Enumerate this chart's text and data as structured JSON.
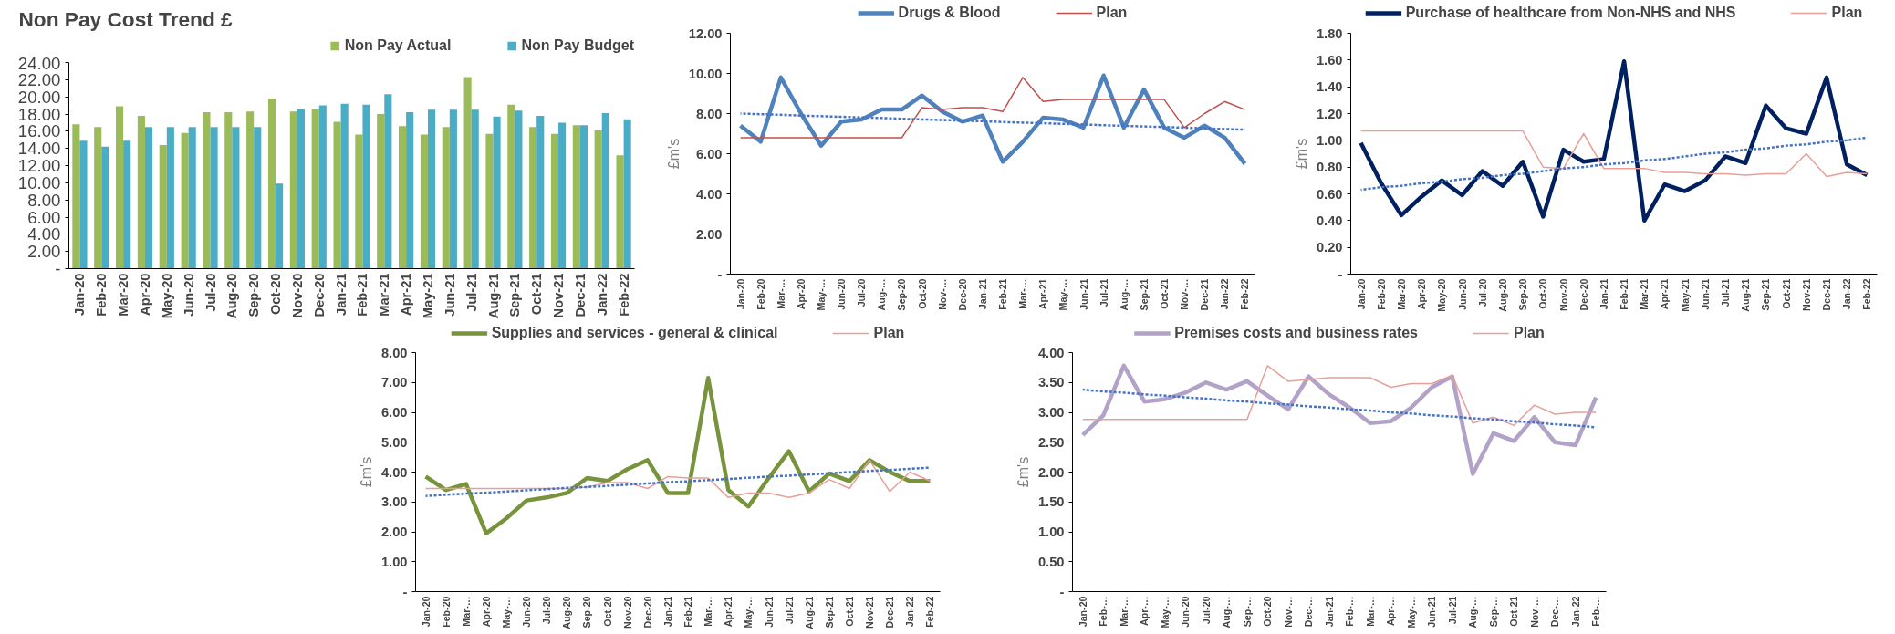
{
  "chart_data": [
    {
      "type": "bar",
      "title": "Non Pay Cost Trend £",
      "legend": "top right",
      "grid": false,
      "categories": [
        "Jan-20",
        "Feb-20",
        "Mar-20",
        "Apr-20",
        "May-20",
        "Jun-20",
        "Jul-20",
        "Aug-20",
        "Sep-20",
        "Oct-20",
        "Nov-20",
        "Dec-20",
        "Jan-21",
        "Feb-21",
        "Mar-21",
        "Apr-21",
        "May-21",
        "Jun-21",
        "Jul-21",
        "Aug-21",
        "Sep-21",
        "Oct-21",
        "Nov-21",
        "Dec-21",
        "Jan-22",
        "Feb-22"
      ],
      "ylim": [
        0,
        24
      ],
      "yticks": [
        {
          "value": 0,
          "label": "-"
        },
        {
          "value": 2,
          "label": "2.00"
        },
        {
          "value": 4,
          "label": "4.00"
        },
        {
          "value": 6,
          "label": "6.00"
        },
        {
          "value": 8,
          "label": "8.00"
        },
        {
          "value": 10,
          "label": "10.00"
        },
        {
          "value": 12,
          "label": "12.00"
        },
        {
          "value": 14,
          "label": "14.00"
        },
        {
          "value": 16,
          "label": "16.00"
        },
        {
          "value": 18,
          "label": "18.00"
        },
        {
          "value": 20,
          "label": "20.00"
        },
        {
          "value": 22,
          "label": "22.00"
        },
        {
          "value": 24,
          "label": "24.00"
        }
      ],
      "series": [
        {
          "name": "Non Pay Actual",
          "color": "#9bbb59",
          "values": [
            16.8,
            16.5,
            18.9,
            17.8,
            14.4,
            15.8,
            18.2,
            18.2,
            18.3,
            19.8,
            18.3,
            18.6,
            17.1,
            15.6,
            18.0,
            16.6,
            15.6,
            16.5,
            22.3,
            15.7,
            19.1,
            16.5,
            15.7,
            16.7,
            16.1,
            13.2
          ]
        },
        {
          "name": "Non Pay Budget",
          "color": "#4bacc6",
          "values": [
            14.9,
            14.2,
            14.9,
            16.5,
            16.5,
            16.5,
            16.5,
            16.5,
            16.5,
            9.9,
            18.6,
            19.0,
            19.2,
            19.1,
            20.3,
            18.2,
            18.5,
            18.5,
            18.5,
            17.7,
            18.4,
            17.8,
            17.0,
            16.7,
            18.1,
            17.4
          ]
        }
      ]
    },
    {
      "type": "line",
      "ylabel": "£m's",
      "legend": "top",
      "grid": false,
      "categories": [
        "Jan-20",
        "Feb-20",
        "Mar-…",
        "Apr-20",
        "May-…",
        "Jun-20",
        "Jul-20",
        "Aug-…",
        "Sep-20",
        "Oct-20",
        "Nov-…",
        "Dec-20",
        "Jan-21",
        "Feb-21",
        "Mar-…",
        "Apr-21",
        "May-…",
        "Jun-21",
        "Jul-21",
        "Aug-…",
        "Sep-21",
        "Oct-21",
        "Nov-…",
        "Dec-21",
        "Jan-22",
        "Feb-22"
      ],
      "ylim": [
        0,
        12
      ],
      "yticks": [
        {
          "value": 0,
          "label": "-"
        },
        {
          "value": 2,
          "label": "2.00"
        },
        {
          "value": 4,
          "label": "4.00"
        },
        {
          "value": 6,
          "label": "6.00"
        },
        {
          "value": 8,
          "label": "8.00"
        },
        {
          "value": 10,
          "label": "10.00"
        },
        {
          "value": 12,
          "label": "12.00"
        }
      ],
      "series": [
        {
          "name": "Drugs & Blood",
          "color": "#4f81bd",
          "values": [
            7.4,
            6.6,
            9.8,
            8.0,
            6.4,
            7.6,
            7.7,
            8.2,
            8.2,
            8.9,
            8.1,
            7.6,
            7.9,
            5.6,
            6.6,
            7.8,
            7.7,
            7.3,
            9.9,
            7.3,
            9.2,
            7.3,
            6.8,
            7.4,
            6.8,
            5.5
          ]
        },
        {
          "name": "Plan",
          "color": "#c0504d",
          "values": [
            6.8,
            6.8,
            6.8,
            6.8,
            6.8,
            6.8,
            6.8,
            6.8,
            6.8,
            8.3,
            8.2,
            8.3,
            8.3,
            8.1,
            9.8,
            8.6,
            8.7,
            8.7,
            8.7,
            8.7,
            8.7,
            8.7,
            7.3,
            8.0,
            8.6,
            8.2
          ]
        },
        {
          "color": "#4472c4",
          "line_style": "dotted",
          "values": [
            8.0,
            7.97,
            7.94,
            7.9,
            7.87,
            7.84,
            7.81,
            7.78,
            7.74,
            7.71,
            7.68,
            7.65,
            7.62,
            7.58,
            7.55,
            7.52,
            7.49,
            7.46,
            7.42,
            7.39,
            7.36,
            7.33,
            7.3,
            7.26,
            7.23,
            7.2
          ]
        }
      ]
    },
    {
      "type": "line",
      "ylabel": "£m's",
      "legend": "top",
      "grid": false,
      "categories": [
        "Jan-20",
        "Feb-20",
        "Mar-20",
        "Apr-20",
        "May-20",
        "Jun-20",
        "Jul-20",
        "Aug-20",
        "Sep-20",
        "Oct-20",
        "Nov-20",
        "Dec-20",
        "Jan-21",
        "Feb-21",
        "Mar-21",
        "Apr-21",
        "May-21",
        "Jun-21",
        "Jul-21",
        "Aug-21",
        "Sep-21",
        "Oct-21",
        "Nov-21",
        "Dec-21",
        "Jan-22",
        "Feb-22"
      ],
      "ylim": [
        0,
        1.8
      ],
      "yticks": [
        {
          "value": 0,
          "label": "-"
        },
        {
          "value": 0.2,
          "label": "0.20"
        },
        {
          "value": 0.4,
          "label": "0.40"
        },
        {
          "value": 0.6,
          "label": "0.60"
        },
        {
          "value": 0.8,
          "label": "0.80"
        },
        {
          "value": 1.0,
          "label": "1.00"
        },
        {
          "value": 1.2,
          "label": "1.20"
        },
        {
          "value": 1.4,
          "label": "1.40"
        },
        {
          "value": 1.6,
          "label": "1.60"
        },
        {
          "value": 1.8,
          "label": "1.80"
        }
      ],
      "series": [
        {
          "name": "Purchase of healthcare from Non-NHS and NHS",
          "color": "#002060",
          "values": [
            0.98,
            0.68,
            0.44,
            0.58,
            0.7,
            0.59,
            0.77,
            0.66,
            0.84,
            0.43,
            0.93,
            0.84,
            0.86,
            1.59,
            0.4,
            0.67,
            0.62,
            0.7,
            0.88,
            0.83,
            1.26,
            1.09,
            1.05,
            1.47,
            0.82,
            0.74
          ]
        },
        {
          "name": "Plan",
          "color": "#e6a09a",
          "values": [
            1.07,
            1.07,
            1.07,
            1.07,
            1.07,
            1.07,
            1.07,
            1.07,
            1.07,
            0.8,
            0.79,
            1.05,
            0.79,
            0.79,
            0.79,
            0.76,
            0.76,
            0.75,
            0.75,
            0.74,
            0.75,
            0.75,
            0.9,
            0.73,
            0.76,
            0.75
          ]
        },
        {
          "color": "#4472c4",
          "line_style": "dotted",
          "values": [
            0.63,
            0.65,
            0.66,
            0.68,
            0.69,
            0.71,
            0.72,
            0.74,
            0.75,
            0.77,
            0.79,
            0.8,
            0.82,
            0.83,
            0.85,
            0.86,
            0.88,
            0.9,
            0.91,
            0.93,
            0.94,
            0.96,
            0.97,
            0.99,
            1.0,
            1.02
          ]
        }
      ]
    },
    {
      "type": "line",
      "ylabel": "£m's",
      "legend": "top",
      "grid": false,
      "categories": [
        "Jan-20",
        "Feb-20",
        "Mar-…",
        "Apr-20",
        "May-…",
        "Jun-20",
        "Jul-20",
        "Aug-20",
        "Sep-20",
        "Oct-20",
        "Nov-20",
        "Dec-20",
        "Jan-21",
        "Feb-21",
        "Mar-…",
        "Apr-21",
        "May-…",
        "Jun-21",
        "Jul-21",
        "Aug-21",
        "Sep-21",
        "Oct-21",
        "Nov-21",
        "Dec-21",
        "Jan-22",
        "Feb-22"
      ],
      "ylim": [
        0,
        8
      ],
      "yticks": [
        {
          "value": 0,
          "label": "-"
        },
        {
          "value": 1,
          "label": "1.00"
        },
        {
          "value": 2,
          "label": "2.00"
        },
        {
          "value": 3,
          "label": "3.00"
        },
        {
          "value": 4,
          "label": "4.00"
        },
        {
          "value": 5,
          "label": "5.00"
        },
        {
          "value": 6,
          "label": "6.00"
        },
        {
          "value": 7,
          "label": "7.00"
        },
        {
          "value": 8,
          "label": "8.00"
        }
      ],
      "series": [
        {
          "name": "Supplies and services - general & clinical",
          "color": "#77933c",
          "values": [
            3.85,
            3.4,
            3.6,
            1.95,
            2.45,
            3.05,
            3.15,
            3.3,
            3.8,
            3.7,
            4.1,
            4.4,
            3.3,
            3.3,
            7.15,
            3.4,
            2.85,
            3.8,
            4.7,
            3.35,
            3.95,
            3.7,
            4.4,
            4.0,
            3.7,
            3.7
          ]
        },
        {
          "name": "Plan",
          "color": "#e6a09a",
          "values": [
            3.45,
            3.45,
            3.45,
            3.45,
            3.45,
            3.45,
            3.45,
            3.45,
            3.5,
            3.65,
            3.65,
            3.45,
            3.85,
            3.8,
            3.8,
            3.15,
            3.3,
            3.3,
            3.15,
            3.3,
            3.75,
            3.45,
            4.4,
            3.35,
            4.0,
            3.7
          ]
        },
        {
          "color": "#4472c4",
          "line_style": "dotted",
          "values": [
            3.2,
            3.24,
            3.28,
            3.31,
            3.35,
            3.39,
            3.43,
            3.47,
            3.5,
            3.54,
            3.58,
            3.62,
            3.66,
            3.69,
            3.73,
            3.77,
            3.81,
            3.85,
            3.88,
            3.92,
            3.96,
            4.0,
            4.04,
            4.07,
            4.11,
            4.15
          ]
        }
      ]
    },
    {
      "type": "line",
      "ylabel": "£m's",
      "legend": "top",
      "grid": false,
      "categories": [
        "Jan-20",
        "Feb-…",
        "Mar-…",
        "Apr-…",
        "May-…",
        "Jun-20",
        "Jul-20",
        "Aug-…",
        "Sep-…",
        "Oct-20",
        "Nov-…",
        "Dec-…",
        "Jan-21",
        "Feb-…",
        "Mar-…",
        "Apr-…",
        "May-…",
        "Jun-21",
        "Jul-21",
        "Aug-…",
        "Sep-…",
        "Oct-21",
        "Nov-…",
        "Dec-…",
        "Jan-22",
        "Feb-…"
      ],
      "ylim": [
        0,
        4
      ],
      "yticks": [
        {
          "value": 0,
          "label": "-"
        },
        {
          "value": 0.5,
          "label": "0.50"
        },
        {
          "value": 1.0,
          "label": "1.00"
        },
        {
          "value": 1.5,
          "label": "1.50"
        },
        {
          "value": 2.0,
          "label": "2.00"
        },
        {
          "value": 2.5,
          "label": "2.50"
        },
        {
          "value": 3.0,
          "label": "3.00"
        },
        {
          "value": 3.5,
          "label": "3.50"
        },
        {
          "value": 4.0,
          "label": "4.00"
        }
      ],
      "series": [
        {
          "name": "Premises costs and business rates",
          "color": "#b3a2c7",
          "values": [
            2.62,
            2.95,
            3.78,
            3.18,
            3.22,
            3.33,
            3.5,
            3.38,
            3.52,
            3.28,
            3.05,
            3.6,
            3.3,
            3.08,
            2.82,
            2.85,
            3.08,
            3.42,
            3.6,
            1.97,
            2.65,
            2.52,
            2.92,
            2.5,
            2.45,
            3.25
          ]
        },
        {
          "name": "Plan",
          "color": "#e6a09a",
          "values": [
            2.88,
            2.88,
            2.88,
            2.88,
            2.88,
            2.88,
            2.88,
            2.88,
            2.88,
            3.78,
            3.52,
            3.55,
            3.58,
            3.58,
            3.58,
            3.42,
            3.48,
            3.48,
            3.62,
            2.82,
            2.92,
            2.78,
            3.12,
            2.97,
            3.0,
            3.0
          ]
        },
        {
          "color": "#4472c4",
          "line_style": "dotted",
          "values": [
            3.38,
            3.35,
            3.33,
            3.3,
            3.28,
            3.25,
            3.23,
            3.2,
            3.18,
            3.15,
            3.13,
            3.1,
            3.08,
            3.05,
            3.03,
            3.0,
            2.98,
            2.95,
            2.93,
            2.9,
            2.88,
            2.85,
            2.83,
            2.8,
            2.78,
            2.75
          ]
        }
      ]
    }
  ]
}
